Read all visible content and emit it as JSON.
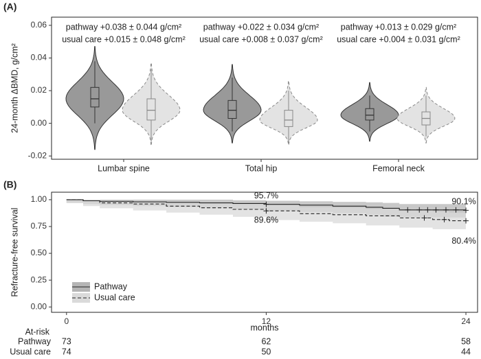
{
  "chart_data": [
    {
      "type": "violin",
      "panel_label": "(A)",
      "ylabel": "24-month ΔBMD, g/cm²",
      "categories": [
        "Lumbar spine",
        "Total hip",
        "Femoral neck"
      ],
      "annotations": [
        [
          "pathway +0.038 ± 0.044 g/cm²",
          "usual care +0.015 ± 0.048 g/cm²"
        ],
        [
          "pathway +0.022 ± 0.034 g/cm²",
          "usual care +0.008 ± 0.037 g/cm²"
        ],
        [
          "pathway +0.013 ± 0.029 g/cm²",
          "usual care +0.004 ± 0.031 g/cm²"
        ]
      ],
      "ylim": [
        -0.022,
        0.065
      ],
      "yticks": [
        -0.02,
        {
          "value": 0,
          "label": "0.00"
        },
        0.02,
        0.04,
        0.06
      ],
      "grid": false,
      "series": [
        {
          "color": "#999999",
          "line_style": "solid",
          "min": [
            -0.016,
            -0.012,
            -0.011
          ],
          "whisker_low": [
            0.0,
            -0.005,
            -0.005
          ],
          "q1": [
            0.01,
            0.003,
            0.002
          ],
          "median": [
            0.015,
            0.008,
            0.005
          ],
          "q3": [
            0.022,
            0.014,
            0.009
          ],
          "whisker_high": [
            0.038,
            0.028,
            0.017
          ],
          "max": [
            0.047,
            0.036,
            0.025
          ]
        },
        {
          "color": "#e3e3e3",
          "line_style": "dashed",
          "min": [
            -0.013,
            -0.013,
            -0.012
          ],
          "whisker_low": [
            -0.011,
            -0.012,
            -0.008
          ],
          "q1": [
            0.002,
            -0.002,
            -0.001
          ],
          "median": [
            0.008,
            0.002,
            0.003
          ],
          "q3": [
            0.015,
            0.008,
            0.007
          ],
          "whisker_high": [
            0.033,
            0.02,
            0.017
          ],
          "max": [
            0.037,
            0.026,
            0.022
          ]
        }
      ]
    },
    {
      "type": "km",
      "panel_label": "(B)",
      "ylabel": "Refracture-free survival",
      "xlabel": "months",
      "xlim": [
        -0.9,
        24.7
      ],
      "xticks": [
        0,
        12,
        24
      ],
      "ylim": [
        -0.05,
        1.07
      ],
      "yticks": [
        {
          "value": 0,
          "label": "0.00"
        },
        0.25,
        {
          "value": 0.5,
          "label": "0.50"
        },
        0.75,
        {
          "value": 1,
          "label": "1.00"
        }
      ],
      "grid": false,
      "legend": "lower left",
      "series": [
        {
          "name": "Pathway",
          "color": "#222222",
          "line_style": "solid",
          "band_color": "#b5b5b5",
          "x": [
            0,
            1,
            2,
            4,
            6,
            8,
            10,
            12,
            14,
            16,
            18,
            19,
            20,
            24
          ],
          "values": [
            1,
            0.99,
            0.985,
            0.98,
            0.975,
            0.97,
            0.965,
            0.957,
            0.95,
            0.94,
            0.93,
            0.92,
            0.905,
            0.901
          ],
          "upper": [
            1,
            1,
            1,
            1,
            1,
            1,
            0.995,
            0.99,
            0.985,
            0.98,
            0.975,
            0.97,
            0.96,
            0.96
          ],
          "lower": [
            1,
            0.97,
            0.96,
            0.95,
            0.94,
            0.93,
            0.92,
            0.91,
            0.9,
            0.885,
            0.875,
            0.86,
            0.84,
            0.835
          ],
          "censored_x": [
            12,
            20.5,
            21.2,
            21.7,
            22.2,
            22.8,
            23.4,
            24
          ],
          "landmarks": {
            "x": [
              12,
              24
            ],
            "values": [
              0.957,
              0.901
            ],
            "value_labels": [
              "95.7%",
              "90.1%"
            ]
          }
        },
        {
          "name": "Usual care",
          "color": "#222222",
          "line_style": "dashed",
          "band_color": "#dadada",
          "x": [
            0,
            1,
            2,
            4,
            6,
            8,
            10,
            12,
            14,
            16,
            18,
            20,
            22,
            23,
            24
          ],
          "values": [
            1,
            0.99,
            0.97,
            0.96,
            0.94,
            0.925,
            0.91,
            0.896,
            0.87,
            0.86,
            0.85,
            0.83,
            0.815,
            0.804,
            0.804
          ],
          "upper": [
            1,
            1,
            0.995,
            0.99,
            0.98,
            0.97,
            0.96,
            0.95,
            0.93,
            0.925,
            0.915,
            0.9,
            0.89,
            0.88,
            0.88
          ],
          "lower": [
            1,
            0.97,
            0.94,
            0.92,
            0.9,
            0.88,
            0.86,
            0.84,
            0.81,
            0.795,
            0.78,
            0.76,
            0.74,
            0.725,
            0.725
          ],
          "censored_x": [
            12,
            21.5,
            22.7,
            24
          ],
          "landmarks": {
            "x": [
              12,
              24
            ],
            "values": [
              0.896,
              0.804
            ],
            "value_labels": [
              "89.6%",
              "80.4%"
            ]
          }
        }
      ],
      "risk_table": {
        "title": "At-risk",
        "rows": [
          {
            "name": "Pathway",
            "counts": [
              73,
              62,
              58
            ]
          },
          {
            "name": "Usual care",
            "counts": [
              74,
              50,
              44
            ]
          }
        ]
      }
    }
  ]
}
